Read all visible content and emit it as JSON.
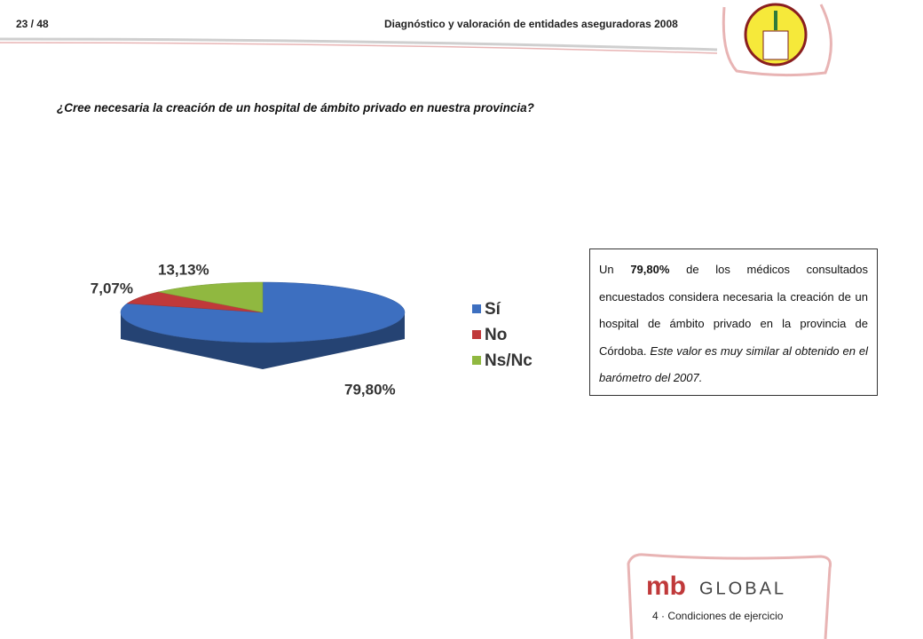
{
  "header": {
    "page": "23 / 48",
    "title": "Diagnóstico y valoración de entidades aseguradoras 2008"
  },
  "question": "¿Cree necesaria la creación de un hospital de ámbito privado en nuestra provincia?",
  "chart_data": {
    "type": "pie",
    "categories": [
      "Sí",
      "No",
      "Ns/Nc"
    ],
    "values": [
      79.8,
      7.07,
      13.13
    ],
    "value_labels": [
      "79,80%",
      "7,07%",
      "13,13%"
    ],
    "colors": [
      "#3d6fc0",
      "#c0393a",
      "#90b840"
    ],
    "legend": "right"
  },
  "text_box": {
    "parts": [
      {
        "text": "Un ",
        "style": "normal"
      },
      {
        "text": "79,80%",
        "style": "bold"
      },
      {
        "text": " de los médicos consultados encuestados considera necesaria la creación de un hospital de ámbito privado en la provincia de Córdoba. ",
        "style": "normal"
      },
      {
        "text": "Este valor es muy similar al obtenido en el barómetro del 2007.",
        "style": "italic"
      }
    ]
  },
  "footer": {
    "logo": [
      "mb",
      "GLOBAL"
    ],
    "section": "4 · Condiciones de ejercicio"
  }
}
